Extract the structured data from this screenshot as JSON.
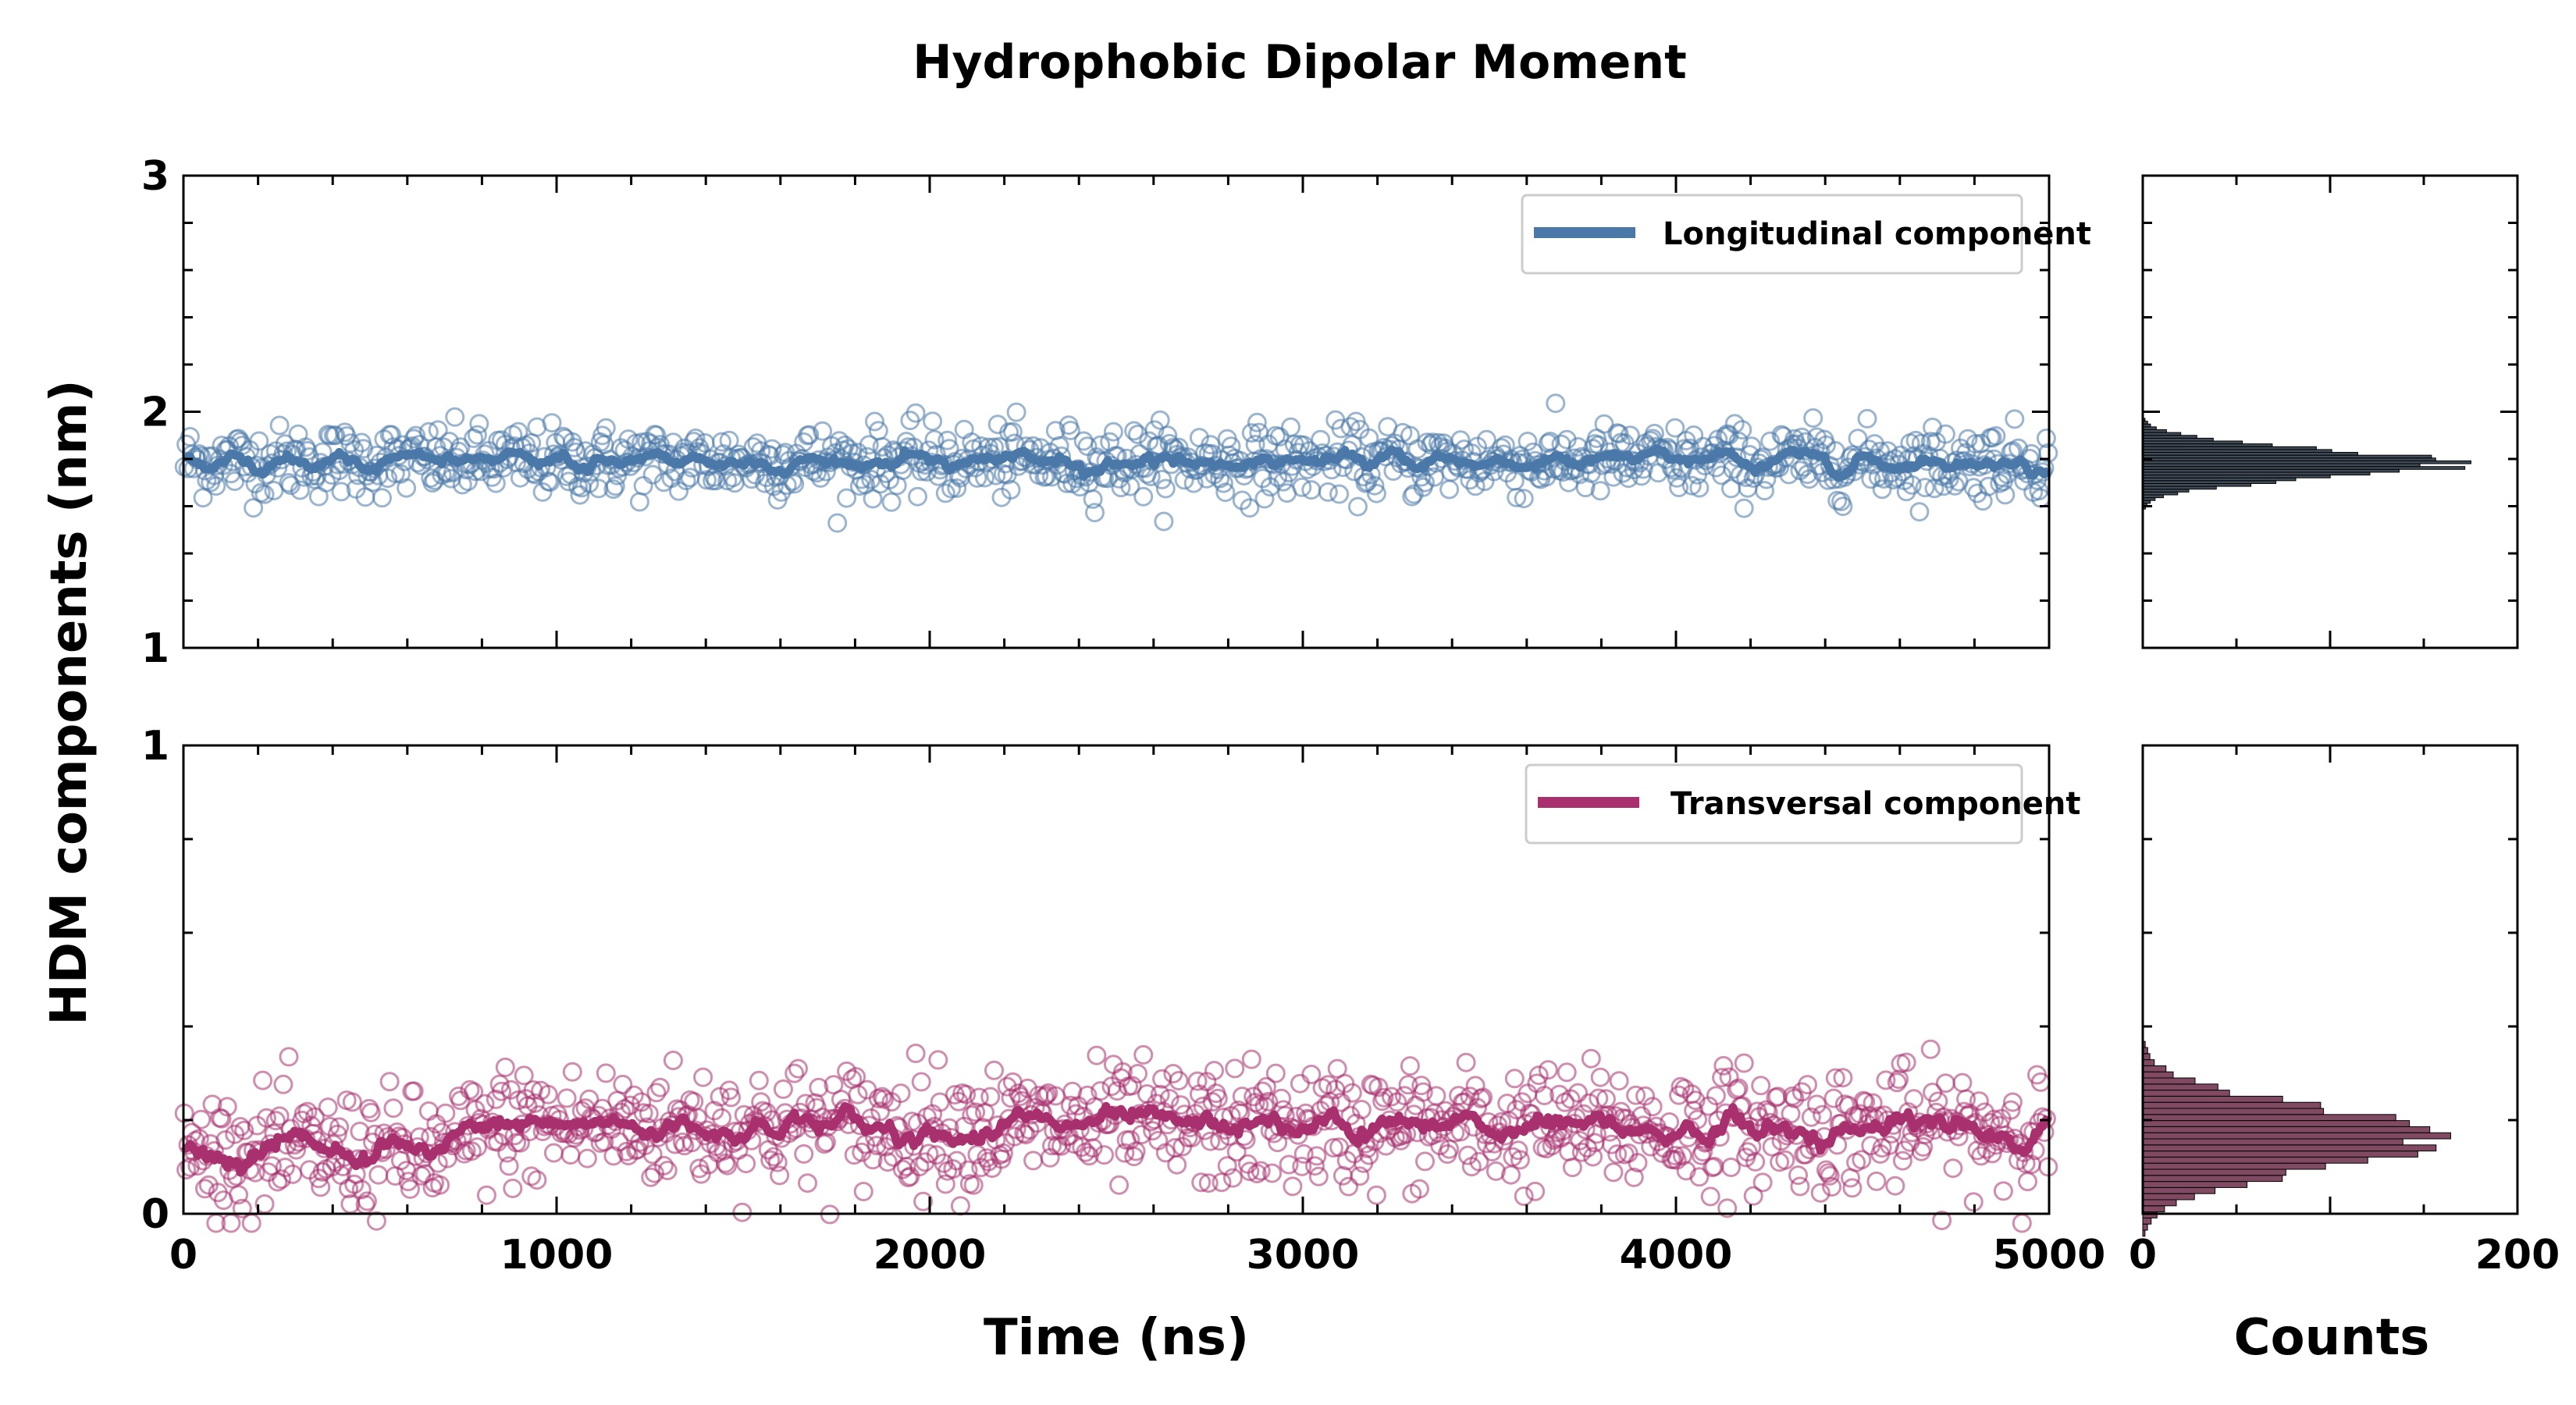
{
  "chart_data": {
    "type": "scatter",
    "title": "Hydrophobic Dipolar Moment",
    "ylabel": "HDM components (nm)",
    "xlabel": "Time (ns)",
    "hist_xlabel": "Counts",
    "panels": [
      {
        "id": "longitudinal",
        "legend": "Longitudinal component",
        "color": "#4a78a8",
        "xlim": [
          0,
          5000
        ],
        "ylim": [
          1,
          3
        ],
        "yticks": [
          1,
          2,
          3
        ],
        "xticks": [
          0,
          1000,
          2000,
          3000,
          4000,
          5000
        ],
        "mean": 1.79,
        "spread": 0.075,
        "trend": [
          [
            0,
            1.79
          ],
          [
            5000,
            1.79
          ]
        ],
        "hist_color": "#1f2d3a",
        "hist_peak": 1.78,
        "hist_sigma": 0.06,
        "hist_max_count": 165
      },
      {
        "id": "transversal",
        "legend": "Transversal component",
        "color": "#a8306e",
        "xlim": [
          0,
          5000
        ],
        "ylim": [
          0,
          1
        ],
        "yticks": [
          0,
          1
        ],
        "xticks": [
          0,
          1000,
          2000,
          3000,
          4000,
          5000
        ],
        "mean": 0.16,
        "spread": 0.065,
        "trend": [
          [
            0,
            0.13
          ],
          [
            700,
            0.13
          ],
          [
            850,
            0.19
          ],
          [
            5000,
            0.18
          ]
        ],
        "hist_color": "#6b2a48",
        "hist_peak": 0.16,
        "hist_sigma": 0.065,
        "hist_max_count": 158
      }
    ],
    "hist_xlim": [
      0,
      200
    ],
    "hist_xticks": [
      0,
      200
    ],
    "n_points": 1000
  }
}
